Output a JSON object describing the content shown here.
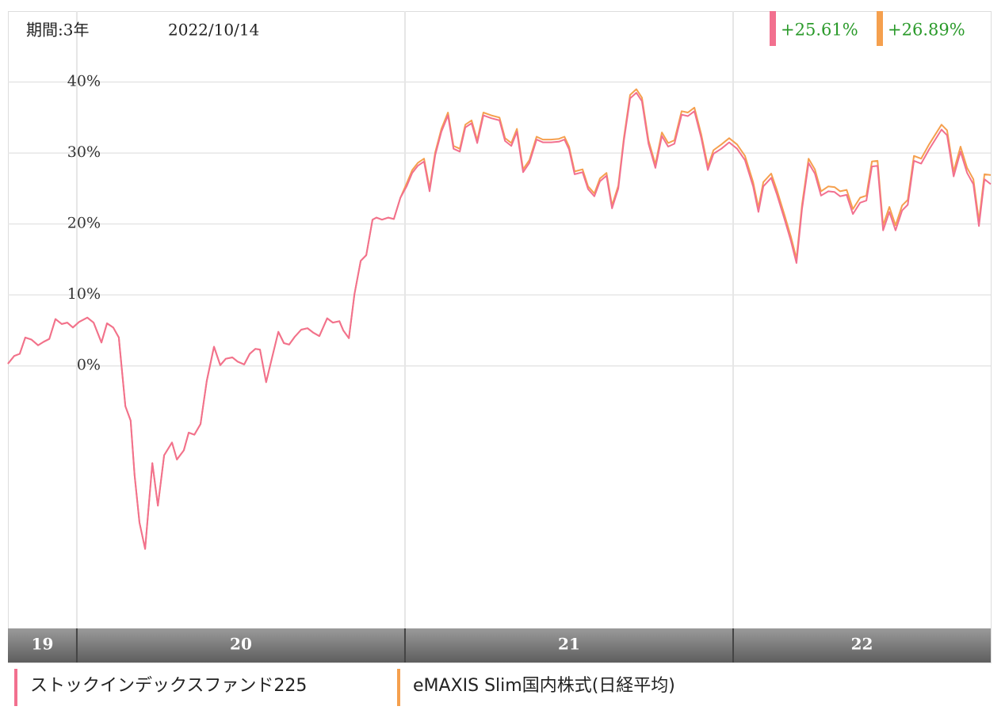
{
  "header": {
    "period": "期間:3年",
    "date": "2022/10/14"
  },
  "chart_data": {
    "type": "line",
    "x": [
      2019.79,
      2019.809,
      2019.826,
      2019.843,
      2019.862,
      2019.882,
      2019.899,
      2019.916,
      2019.935,
      2019.954,
      2019.971,
      2019.988,
      2020.007,
      2020.032,
      2020.051,
      2020.075,
      2020.092,
      2020.111,
      2020.128,
      2020.148,
      2020.164,
      2020.176,
      2020.191,
      2020.208,
      2020.23,
      2020.247,
      2020.266,
      2020.29,
      2020.305,
      2020.326,
      2020.341,
      2020.358,
      2020.377,
      2020.396,
      2020.418,
      2020.437,
      2020.454,
      2020.474,
      2020.49,
      2020.51,
      2020.527,
      2020.544,
      2020.558,
      2020.577,
      2020.594,
      2020.614,
      2020.631,
      2020.647,
      2020.664,
      2020.684,
      2020.703,
      2020.72,
      2020.739,
      2020.763,
      2020.78,
      2020.8,
      2020.812,
      2020.829,
      2020.846,
      2020.865,
      2020.882,
      2020.901,
      2020.913,
      2020.93,
      2020.949,
      2020.966,
      2020.986,
      2021.005,
      2021.022,
      2021.039,
      2021.058,
      2021.075,
      2021.092,
      2021.111,
      2021.131,
      2021.148,
      2021.167,
      2021.184,
      2021.203,
      2021.22,
      2021.239,
      2021.263,
      2021.288,
      2021.305,
      2021.324,
      2021.341,
      2021.36,
      2021.379,
      2021.401,
      2021.42,
      2021.445,
      2021.469,
      2021.486,
      2021.5,
      2021.517,
      2021.541,
      2021.558,
      2021.577,
      2021.594,
      2021.614,
      2021.631,
      2021.65,
      2021.667,
      2021.686,
      2021.705,
      2021.722,
      2021.742,
      2021.763,
      2021.783,
      2021.802,
      2021.821,
      2021.843,
      2021.862,
      2021.882,
      2021.903,
      2021.923,
      2021.94,
      2021.964,
      2021.988,
      2022.012,
      2022.036,
      2022.061,
      2022.077,
      2022.092,
      2022.116,
      2022.133,
      2022.157,
      2022.176,
      2022.193,
      2022.21,
      2022.23,
      2022.249,
      2022.268,
      2022.29,
      2022.309,
      2022.326,
      2022.346,
      2022.365,
      2022.387,
      2022.406,
      2022.423,
      2022.44,
      2022.457,
      2022.476,
      2022.495,
      2022.515,
      2022.532,
      2022.551,
      2022.573,
      2022.597,
      2022.616,
      2022.635,
      2022.652,
      2022.672,
      2022.693,
      2022.713,
      2022.732,
      2022.749,
      2022.766,
      2022.785
    ],
    "series": [
      {
        "name": "eMAXIS Slim国内株式(日経平均)",
        "color": "#f5a04e",
        "end_label": "+26.89%",
        "values": [
          0.3,
          1.4,
          1.7,
          4.0,
          3.7,
          2.9,
          3.4,
          3.8,
          6.6,
          5.9,
          6.1,
          5.4,
          6.2,
          6.8,
          6.1,
          3.3,
          6.0,
          5.4,
          4.0,
          -5.7,
          -7.7,
          -15.4,
          -22.1,
          -25.8,
          -13.7,
          -19.7,
          -12.6,
          -10.8,
          -13.2,
          -11.9,
          -9.4,
          -9.7,
          -8.2,
          -2.1,
          2.7,
          0.1,
          1.0,
          1.2,
          0.6,
          0.2,
          1.7,
          2.4,
          2.3,
          -2.3,
          1.0,
          4.8,
          3.2,
          3.0,
          4.1,
          5.1,
          5.3,
          4.7,
          4.2,
          6.7,
          6.1,
          6.3,
          5.0,
          3.9,
          10.1,
          14.8,
          15.6,
          20.6,
          20.9,
          20.6,
          20.9,
          20.7,
          23.7,
          25.7,
          27.6,
          28.6,
          29.2,
          25.0,
          30.1,
          33.4,
          35.7,
          31.0,
          30.6,
          34.0,
          34.6,
          31.8,
          35.7,
          35.3,
          35.0,
          32.1,
          31.4,
          33.4,
          27.7,
          29.0,
          32.3,
          31.9,
          31.9,
          32.0,
          32.3,
          30.9,
          27.4,
          27.7,
          25.3,
          24.3,
          26.4,
          27.2,
          22.6,
          25.4,
          32.1,
          38.2,
          39.0,
          37.8,
          31.8,
          28.4,
          32.9,
          31.4,
          31.8,
          35.9,
          35.7,
          36.4,
          32.6,
          28.1,
          30.4,
          31.2,
          32.1,
          31.2,
          29.6,
          25.9,
          22.3,
          25.9,
          27.1,
          24.8,
          21.2,
          18.2,
          15.1,
          22.7,
          29.2,
          27.7,
          24.6,
          25.3,
          25.2,
          24.6,
          24.8,
          22.1,
          23.7,
          24.0,
          28.8,
          28.9,
          19.8,
          22.4,
          19.8,
          22.6,
          23.4,
          29.6,
          29.2,
          31.2,
          32.6,
          34.0,
          33.2,
          27.4,
          30.9,
          27.9,
          26.3,
          20.4,
          27.0,
          26.89
        ]
      },
      {
        "name": "ストックインデックスファンド225",
        "color": "#f2708f",
        "end_label": "+25.61%",
        "values": [
          0.3,
          1.4,
          1.7,
          4.0,
          3.7,
          2.9,
          3.4,
          3.8,
          6.6,
          5.9,
          6.1,
          5.4,
          6.2,
          6.8,
          6.1,
          3.3,
          6.0,
          5.4,
          4.0,
          -5.7,
          -7.7,
          -15.4,
          -22.1,
          -25.8,
          -13.7,
          -19.7,
          -12.6,
          -10.8,
          -13.2,
          -11.9,
          -9.4,
          -9.7,
          -8.2,
          -2.1,
          2.7,
          0.1,
          1.0,
          1.2,
          0.6,
          0.2,
          1.7,
          2.4,
          2.3,
          -2.3,
          1.0,
          4.8,
          3.2,
          3.0,
          4.1,
          5.1,
          5.3,
          4.7,
          4.2,
          6.7,
          6.1,
          6.3,
          5.0,
          3.9,
          10.1,
          14.8,
          15.6,
          20.6,
          20.9,
          20.6,
          20.9,
          20.7,
          23.7,
          25.3,
          27.2,
          28.2,
          28.8,
          24.6,
          29.7,
          33.0,
          35.3,
          30.6,
          30.2,
          33.6,
          34.2,
          31.4,
          35.3,
          34.9,
          34.6,
          31.7,
          31.0,
          33.0,
          27.3,
          28.6,
          31.9,
          31.5,
          31.5,
          31.6,
          31.9,
          30.5,
          27.0,
          27.3,
          24.9,
          23.9,
          26.0,
          26.8,
          22.2,
          25.0,
          31.7,
          37.7,
          38.5,
          37.3,
          31.3,
          27.9,
          32.4,
          30.9,
          31.3,
          35.4,
          35.2,
          35.9,
          32.1,
          27.6,
          29.9,
          30.6,
          31.5,
          30.6,
          29.0,
          25.3,
          21.7,
          25.3,
          26.5,
          24.2,
          20.6,
          17.6,
          14.5,
          22.1,
          28.6,
          27.1,
          24.0,
          24.6,
          24.5,
          23.9,
          24.1,
          21.4,
          23.0,
          23.3,
          28.1,
          28.2,
          19.1,
          21.7,
          19.1,
          21.9,
          22.7,
          28.9,
          28.5,
          30.5,
          31.9,
          33.3,
          32.5,
          26.7,
          30.2,
          27.2,
          25.6,
          19.7,
          26.3,
          25.61
        ]
      }
    ],
    "xlim": [
      2019.79,
      2022.785
    ],
    "xticks": [
      2020,
      2021,
      2022
    ],
    "year_labels": [
      "19",
      "20",
      "21",
      "22"
    ],
    "ylim": [
      -37,
      50
    ],
    "yticks": [
      {
        "value": 0,
        "label": "0%"
      },
      {
        "value": 10,
        "label": "10%"
      },
      {
        "value": 20,
        "label": "20%"
      },
      {
        "value": 30,
        "label": "30%"
      },
      {
        "value": 40,
        "label": "40%"
      }
    ],
    "grid": true
  }
}
